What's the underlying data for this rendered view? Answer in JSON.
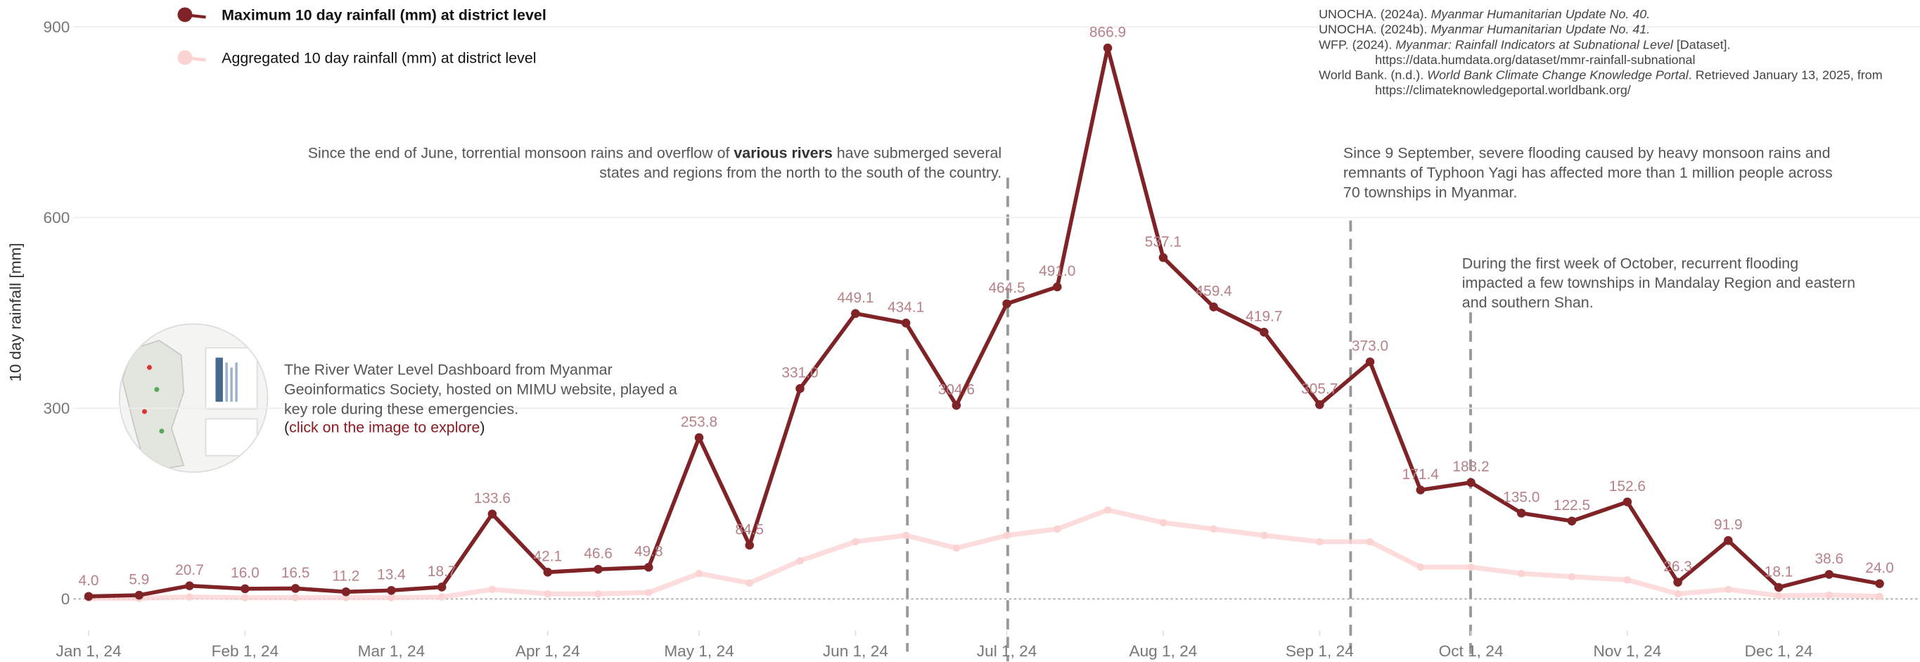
{
  "chart_data": {
    "type": "line",
    "y_label": "10 day rainfall [mm]",
    "x": [
      "2024-01-01",
      "2024-01-11",
      "2024-01-21",
      "2024-02-01",
      "2024-02-11",
      "2024-02-21",
      "2024-03-01",
      "2024-03-11",
      "2024-03-21",
      "2024-04-01",
      "2024-04-11",
      "2024-04-21",
      "2024-05-01",
      "2024-05-11",
      "2024-05-21",
      "2024-06-01",
      "2024-06-11",
      "2024-06-21",
      "2024-07-01",
      "2024-07-11",
      "2024-07-21",
      "2024-08-01",
      "2024-08-11",
      "2024-08-21",
      "2024-09-01",
      "2024-09-11",
      "2024-09-21",
      "2024-10-01",
      "2024-10-11",
      "2024-10-21",
      "2024-11-01",
      "2024-11-11",
      "2024-11-21",
      "2024-12-01",
      "2024-12-11",
      "2024-12-21"
    ],
    "series": [
      {
        "name": "Aggregated 10 day rainfall (mm) at district level",
        "color": "#fbd3d3",
        "values": [
          1,
          1,
          3,
          2,
          2,
          2,
          2,
          3,
          15,
          8,
          8,
          10,
          40,
          25,
          60,
          90,
          100,
          80,
          100,
          110,
          140,
          120,
          110,
          100,
          90,
          90,
          50,
          50,
          40,
          35,
          30,
          8,
          15,
          5,
          6,
          4
        ]
      },
      {
        "name": "Maximum 10 day rainfall (mm) at district level",
        "color": "#7f2326",
        "values": [
          4.0,
          5.9,
          20.7,
          16.0,
          16.5,
          11.2,
          13.4,
          18.7,
          133.6,
          42.1,
          46.6,
          49.8,
          253.8,
          84.5,
          331.0,
          449.1,
          434.1,
          304.6,
          464.5,
          491.0,
          866.9,
          537.1,
          459.4,
          419.7,
          305.7,
          373.0,
          171.4,
          183.2,
          135.0,
          122.5,
          152.6,
          26.3,
          91.9,
          18.1,
          38.6,
          24.0
        ],
        "value_labels": [
          "4.0",
          "5.9",
          "20.7",
          "16.0",
          "16.5",
          "11.2",
          "13.4",
          "18.7",
          "133.6",
          "42.1",
          "46.6",
          "49.8",
          "253.8",
          "84.5",
          "331.0",
          "449.1",
          "434.1",
          "304.6",
          "464.5",
          "491.0",
          "866.9",
          "537.1",
          "459.4",
          "419.7",
          "305.7",
          "373.0",
          "171.4",
          "183.2",
          "135.0",
          "122.5",
          "152.6",
          "26.3",
          "91.9",
          "18.1",
          "38.6",
          "24.0"
        ]
      }
    ],
    "xlim": [
      "2023-12-29",
      "2024-12-29"
    ],
    "xticks": [
      {
        "value": "2024-01-01",
        "label": "Jan 1, 24"
      },
      {
        "value": "2024-02-01",
        "label": "Feb 1, 24"
      },
      {
        "value": "2024-03-01",
        "label": "Mar 1, 24"
      },
      {
        "value": "2024-04-01",
        "label": "Apr 1, 24"
      },
      {
        "value": "2024-05-01",
        "label": "May 1, 24"
      },
      {
        "value": "2024-06-01",
        "label": "Jun 1, 24"
      },
      {
        "value": "2024-07-01",
        "label": "Jul 1, 24"
      },
      {
        "value": "2024-08-01",
        "label": "Aug 1, 24"
      },
      {
        "value": "2024-09-01",
        "label": "Sep 1, 24"
      },
      {
        "value": "2024-10-01",
        "label": "Oct 1, 24"
      },
      {
        "value": "2024-11-01",
        "label": "Nov 1, 24"
      },
      {
        "value": "2024-12-01",
        "label": "Dec 1, 24"
      }
    ],
    "ylim": [
      0,
      900
    ],
    "yticks": [
      0,
      300,
      600,
      900
    ],
    "grid": true
  },
  "annotations": {
    "rivers": [
      "Since the end of June, torrential monsoon rains and overflow of ",
      "various rivers",
      " have submerged several",
      "states and regions from the north to the south of the country."
    ],
    "yagi": [
      "Since 9 September, severe flooding caused by heavy monsoon rains and",
      "remnants of Typhoon Yagi has affected more than 1 million people across",
      "70 townships in Myanmar."
    ],
    "october": [
      "During the first week of October, recurrent flooding",
      "impacted a few townships in Mandalay Region and eastern",
      "and southern Shan."
    ],
    "dashboard": [
      "The River Water Level Dashboard from Myanmar",
      "Geoinformatics Society, hosted on MIMU website, played a",
      "key role during these emergencies.",
      "(",
      "click on the image to explore",
      ")"
    ]
  },
  "references": [
    [
      {
        "text": "UNOCHA. (2024a). "
      },
      {
        "text": "Myanmar Humanitarian Update No. 40.",
        "italic": true
      }
    ],
    [
      {
        "text": "UNOCHA. (2024b). "
      },
      {
        "text": "Myanmar Humanitarian Update No. 41.",
        "italic": true
      }
    ],
    [
      {
        "text": "WFP. (2024). "
      },
      {
        "text": "Myanmar: Rainfall Indicators at Subnational Level",
        "italic": true
      },
      {
        "text": " [Dataset]."
      }
    ],
    [
      {
        "text": "https://data.humdata.org/dataset/mmr-rainfall-subnational",
        "indent": true
      }
    ],
    [
      {
        "text": "World Bank. (n.d.). "
      },
      {
        "text": "World Bank Climate Change Knowledge Portal",
        "italic": true
      },
      {
        "text": ". Retrieved January 13, 2025, from"
      }
    ],
    [
      {
        "text": "https://climateknowledgeportal.worldbank.org/",
        "indent": true
      }
    ]
  ]
}
